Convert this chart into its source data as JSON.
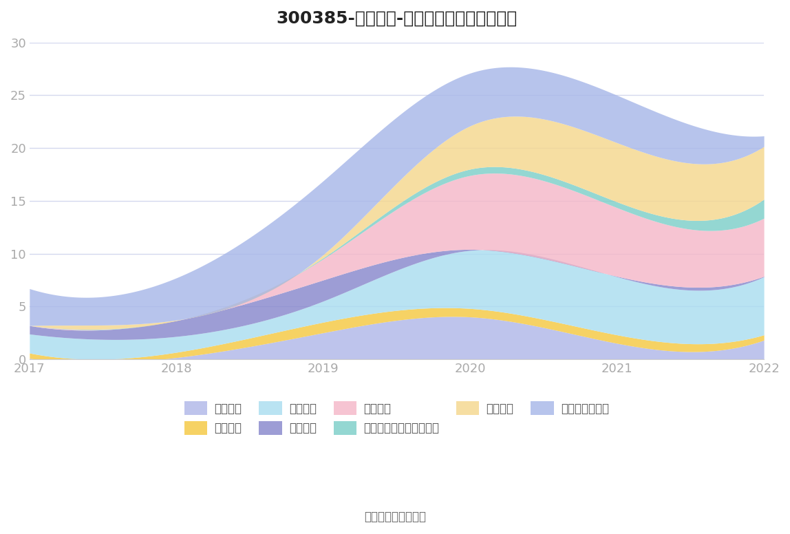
{
  "title": "300385-雪浪环境-主要负债堆积图（亿元）",
  "years": [
    2017,
    2018,
    2019,
    2020,
    2021,
    2022
  ],
  "series": [
    {
      "name": "短期借款",
      "color": "#b0b8e8",
      "values": [
        0.08,
        0.15,
        2.5,
        4.0,
        1.5,
        1.8
      ]
    },
    {
      "name": "应付票据",
      "color": "#f5c842",
      "values": [
        0.5,
        0.5,
        1.0,
        0.8,
        0.8,
        0.5
      ]
    },
    {
      "name": "应付账款",
      "color": "#aaddf0",
      "values": [
        1.8,
        1.5,
        2.0,
        5.5,
        5.5,
        5.5
      ]
    },
    {
      "name": "预收款项",
      "color": "#8888cc",
      "values": [
        0.8,
        1.5,
        2.0,
        0.1,
        0.05,
        0.05
      ]
    },
    {
      "name": "合同负债",
      "color": "#f4b8c8",
      "values": [
        0.0,
        0.0,
        2.0,
        7.0,
        6.5,
        5.5
      ]
    },
    {
      "name": "一年内到期的非流动负债",
      "color": "#7dcfc8",
      "values": [
        0.0,
        0.0,
        0.1,
        0.6,
        0.55,
        1.8
      ]
    },
    {
      "name": "长期借款",
      "color": "#f5d78e",
      "values": [
        0.0,
        0.05,
        0.3,
        4.1,
        5.6,
        5.0
      ]
    },
    {
      "name": "其他非流动负债",
      "color": "#a8b8e8",
      "values": [
        3.5,
        4.0,
        7.0,
        5.0,
        4.5,
        1.0
      ]
    }
  ],
  "ylim": [
    0,
    30
  ],
  "yticks": [
    0,
    5,
    10,
    15,
    20,
    25,
    30
  ],
  "background_color": "#ffffff",
  "grid_color": "#d4d8ee",
  "source_text": "数据来源：恒生聚源",
  "title_fontsize": 18,
  "axis_fontsize": 13,
  "legend_fontsize": 12,
  "legend_row1": [
    "短期借款",
    "应付票据",
    "应付账款",
    "预收款项",
    "合同负债"
  ],
  "legend_row2": [
    "一年内到期的非流动负债",
    "长期借款",
    "其他非流动负债"
  ]
}
